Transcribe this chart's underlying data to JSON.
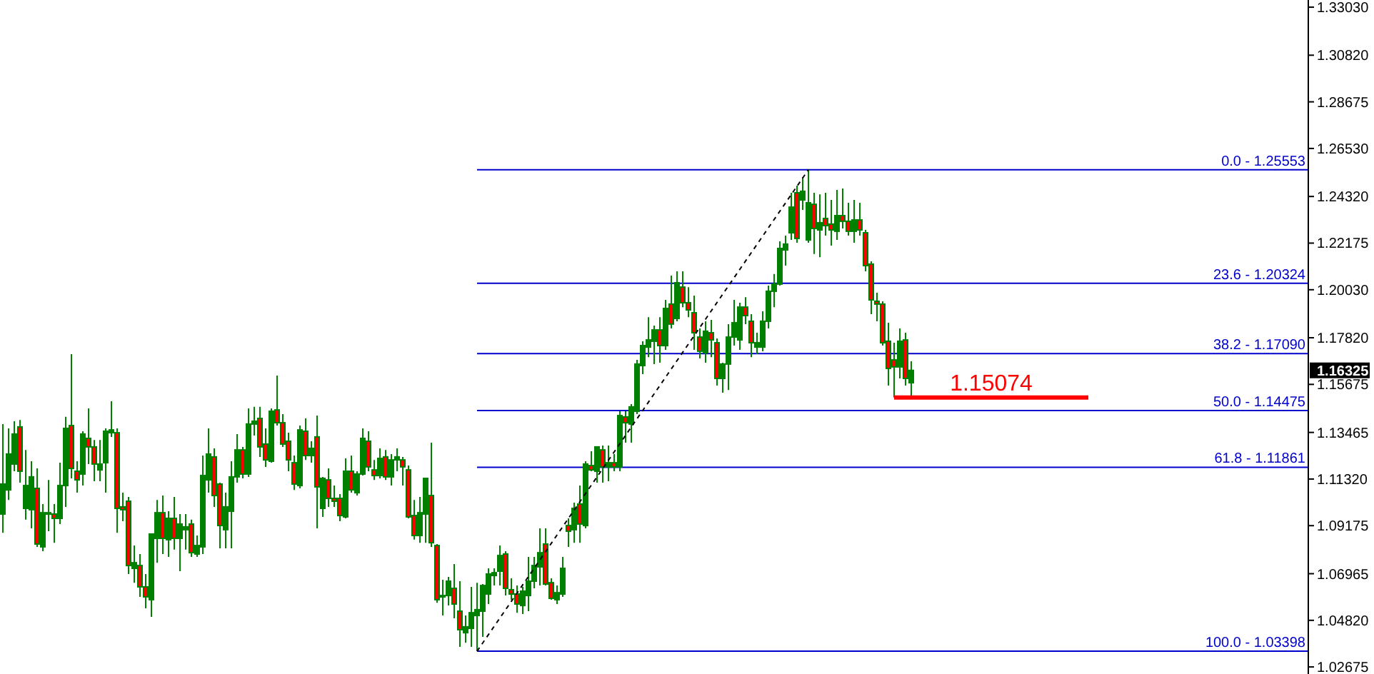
{
  "chart_data": {
    "type": "candlestick",
    "categories": [
      null,
      null,
      null,
      null,
      null,
      null,
      null,
      null,
      null,
      null,
      null,
      null,
      null,
      null,
      null,
      null,
      null,
      null,
      null,
      null,
      null,
      null,
      null,
      null,
      null,
      null,
      null,
      null,
      null,
      null,
      null,
      null,
      null,
      null,
      null,
      null,
      null,
      null,
      null,
      null,
      null,
      null,
      null,
      null,
      null,
      null,
      null,
      null,
      null,
      null,
      null,
      null,
      null,
      null,
      null,
      null,
      null,
      null,
      null,
      null,
      null,
      null,
      null,
      null,
      null,
      null,
      null,
      null,
      null,
      null,
      null,
      null,
      null,
      null,
      null,
      null,
      null,
      null,
      null,
      null,
      null,
      null,
      null,
      null,
      null,
      null,
      null,
      null,
      null,
      null,
      null,
      null,
      null,
      null,
      null,
      null,
      null,
      null,
      null,
      null,
      null,
      null,
      null,
      null,
      null,
      null,
      null,
      null,
      null,
      null,
      null,
      null,
      null,
      null,
      null,
      null,
      null,
      null,
      null,
      null,
      null,
      null,
      null,
      null,
      null,
      null,
      null,
      null,
      null,
      null,
      null,
      null,
      null,
      null,
      null,
      null,
      null,
      null,
      null,
      null,
      null,
      null,
      null,
      null,
      null,
      null,
      null,
      null,
      null,
      null,
      null,
      null,
      null,
      null,
      null,
      null,
      null,
      null,
      null,
      null,
      null,
      null,
      null,
      null,
      null,
      null,
      null,
      null,
      null,
      null,
      null,
      null,
      null,
      null,
      null,
      null,
      null,
      null,
      null,
      null,
      null,
      null,
      null,
      null,
      null,
      null,
      null,
      null,
      null,
      null,
      null,
      null,
      null,
      null,
      null,
      null,
      null,
      null,
      null,
      null,
      null,
      null,
      null,
      null,
      null,
      null,
      null,
      null,
      null,
      null,
      null,
      null,
      null,
      null,
      null,
      null,
      null,
      null,
      null,
      null,
      null,
      null,
      null,
      null,
      null,
      null,
      null,
      null,
      null
    ],
    "series": [
      {
        "color": "#008000",
        "ohlc": [
          [
            1.0971,
            1.1385,
            1.0885,
            1.1109
          ],
          [
            1.1082,
            1.1365,
            1.1036,
            1.1247
          ],
          [
            1.1201,
            1.1398,
            1.1168,
            1.1339
          ],
          [
            1.1372,
            1.1404,
            1.1115,
            1.1168
          ],
          [
            1.0997,
            1.1266,
            1.0945,
            1.1102
          ],
          [
            1.0991,
            1.1214,
            1.0905,
            1.1142
          ],
          [
            1.1089,
            1.1181,
            1.082,
            1.0833
          ],
          [
            1.082,
            1.1017,
            1.08,
            1.0977
          ],
          [
            1.0971,
            1.1128,
            1.0892,
            1.0977
          ],
          [
            1.0971,
            1.1017,
            1.0839,
            1.0951
          ],
          [
            1.0951,
            1.1207,
            1.0925,
            1.1102
          ],
          [
            1.1102,
            1.1418,
            1.1004,
            1.1365
          ],
          [
            1.1378,
            1.1707,
            1.1135,
            1.1181
          ],
          [
            1.1168,
            1.1214,
            1.1069,
            1.1128
          ],
          [
            1.1155,
            1.1352,
            1.1102,
            1.1339
          ],
          [
            1.1319,
            1.1457,
            1.1201,
            1.128
          ],
          [
            1.128,
            1.1312,
            1.1122,
            1.1201
          ],
          [
            1.1174,
            1.1312,
            1.1122,
            1.1201
          ],
          [
            1.1207,
            1.1365,
            1.1069,
            1.1352
          ],
          [
            1.1345,
            1.149,
            1.1326,
            1.1358
          ],
          [
            1.1345,
            1.1365,
            1.0885,
            1.0997
          ],
          [
            1.1004,
            1.1069,
            1.0938,
            1.0991
          ],
          [
            1.103,
            1.105,
            1.0695,
            1.0734
          ],
          [
            1.0721,
            1.0826,
            1.0655,
            1.0747
          ],
          [
            1.0734,
            1.0787,
            1.059,
            1.0636
          ],
          [
            1.0636,
            1.0695,
            1.0537,
            1.059
          ],
          [
            1.0577,
            1.0879,
            1.0498,
            1.0879
          ],
          [
            1.0859,
            1.1036,
            1.0747,
            1.0977
          ],
          [
            1.0977,
            1.1056,
            1.0787,
            1.0859
          ],
          [
            1.0853,
            1.0984,
            1.0774,
            1.0951
          ],
          [
            1.0951,
            1.105,
            1.0807,
            1.0859
          ],
          [
            1.0859,
            1.0971,
            1.0708,
            1.0925
          ],
          [
            1.0899,
            1.0971,
            1.0807,
            1.0912
          ],
          [
            1.0925,
            1.0945,
            1.0774,
            1.0793
          ],
          [
            1.0787,
            1.0872,
            1.0774,
            1.0826
          ],
          [
            1.082,
            1.124,
            1.0787,
            1.1148
          ],
          [
            1.1128,
            1.1365,
            1.1069,
            1.1247
          ],
          [
            1.1234,
            1.1273,
            1.1004,
            1.1056
          ],
          [
            1.1109,
            1.1115,
            1.0813,
            1.0918
          ],
          [
            1.0899,
            1.1069,
            1.0813,
            1.1004
          ],
          [
            1.0984,
            1.1214,
            1.0813,
            1.1142
          ],
          [
            1.1142,
            1.1339,
            1.1115,
            1.1266
          ],
          [
            1.1266,
            1.128,
            1.1135,
            1.1155
          ],
          [
            1.1155,
            1.1457,
            1.1142,
            1.1385
          ],
          [
            1.1385,
            1.1464,
            1.1332,
            1.1398
          ],
          [
            1.1411,
            1.1464,
            1.1234,
            1.128
          ],
          [
            1.1293,
            1.1365,
            1.1188,
            1.122
          ],
          [
            1.1214,
            1.1457,
            1.1207,
            1.1444
          ],
          [
            1.145,
            1.1608,
            1.1378,
            1.1391
          ],
          [
            1.1391,
            1.1431,
            1.128,
            1.1293
          ],
          [
            1.1306,
            1.1345,
            1.1168,
            1.122
          ],
          [
            1.1207,
            1.124,
            1.1082,
            1.1109
          ],
          [
            1.1102,
            1.1378,
            1.1089,
            1.1358
          ],
          [
            1.1352,
            1.1411,
            1.122,
            1.124
          ],
          [
            1.124,
            1.1306,
            1.1207,
            1.1273
          ],
          [
            1.1326,
            1.1424,
            1.0905,
            1.1096
          ],
          [
            1.0997,
            1.1142,
            1.0958,
            1.1135
          ],
          [
            1.1128,
            1.1181,
            1.1004,
            1.1043
          ],
          [
            1.1043,
            1.1102,
            1.1004,
            1.103
          ],
          [
            1.1043,
            1.1063,
            1.0938,
            1.0964
          ],
          [
            1.0958,
            1.1227,
            1.0951,
            1.1168
          ],
          [
            1.1168,
            1.124,
            1.1069,
            1.1082
          ],
          [
            1.1069,
            1.1168,
            1.1056,
            1.1155
          ],
          [
            1.1155,
            1.1365,
            1.1148,
            1.1319
          ],
          [
            1.1306,
            1.1352,
            1.1168,
            1.1188
          ],
          [
            1.1174,
            1.122,
            1.1128,
            1.1148
          ],
          [
            1.1148,
            1.1273,
            1.1135,
            1.1227
          ],
          [
            1.1234,
            1.1266,
            1.1128,
            1.1142
          ],
          [
            1.1142,
            1.1247,
            1.1102,
            1.122
          ],
          [
            1.122,
            1.1273,
            1.1168,
            1.1234
          ],
          [
            1.122,
            1.1234,
            1.1102,
            1.1188
          ],
          [
            1.1174,
            1.1194,
            1.0951,
            1.0958
          ],
          [
            1.0964,
            1.1036,
            1.0853,
            1.0872
          ],
          [
            1.0872,
            1.105,
            1.0839,
            1.0977
          ],
          [
            1.0971,
            1.1135,
            1.0839,
            1.1135
          ],
          [
            1.1056,
            1.1299,
            1.082,
            1.0839
          ],
          [
            1.0826,
            1.0833,
            1.0563,
            1.0577
          ],
          [
            1.059,
            1.0669,
            1.0504,
            1.0596
          ],
          [
            1.0596,
            1.0682,
            1.055,
            1.0662
          ],
          [
            1.0629,
            1.0741,
            1.0491,
            1.0557
          ],
          [
            1.0524,
            1.0662,
            1.036,
            1.0439
          ],
          [
            1.0425,
            1.0504,
            1.0379,
            1.0452
          ],
          [
            1.0445,
            1.0636,
            1.036,
            1.0517
          ],
          [
            1.0504,
            1.0655,
            1.03398,
            1.0531
          ],
          [
            1.0524,
            1.0649,
            1.0406,
            1.0642
          ],
          [
            1.0603,
            1.0721,
            1.0557,
            1.0695
          ],
          [
            1.0688,
            1.0721,
            1.0642,
            1.0701
          ],
          [
            1.0708,
            1.0826,
            1.0642,
            1.078
          ],
          [
            1.0787,
            1.08,
            1.0596,
            1.0629
          ],
          [
            1.0623,
            1.0675,
            1.0577,
            1.0603
          ],
          [
            1.0603,
            1.0642,
            1.0517,
            1.0557
          ],
          [
            1.055,
            1.0636,
            1.0511,
            1.0616
          ],
          [
            1.0596,
            1.0774,
            1.0524,
            1.0662
          ],
          [
            1.0662,
            1.0774,
            1.0629,
            1.0734
          ],
          [
            1.0728,
            1.0905,
            1.0642,
            1.0793
          ],
          [
            1.0833,
            1.0905,
            1.0642,
            1.0649
          ],
          [
            1.0655,
            1.0675,
            1.0577,
            1.0583
          ],
          [
            1.0577,
            1.0642,
            1.0557,
            1.0609
          ],
          [
            1.0603,
            1.0774,
            1.059,
            1.0721
          ],
          [
            1.0918,
            1.0951,
            1.082,
            1.0892
          ],
          [
            1.0899,
            1.1023,
            1.0839,
            1.0997
          ],
          [
            1.1017,
            1.1102,
            1.0839,
            1.0925
          ],
          [
            1.0918,
            1.1214,
            1.0905,
            1.1201
          ],
          [
            1.1194,
            1.126,
            1.1168,
            1.1174
          ],
          [
            1.1168,
            1.128,
            1.1115,
            1.128
          ],
          [
            1.1266,
            1.1286,
            1.1115,
            1.1188
          ],
          [
            1.1188,
            1.1286,
            1.1122,
            1.1207
          ],
          [
            1.1207,
            1.1247,
            1.1168,
            1.1188
          ],
          [
            1.1188,
            1.1444,
            1.1168,
            1.1424
          ],
          [
            1.1418,
            1.1444,
            1.1299,
            1.1391
          ],
          [
            1.1385,
            1.1477,
            1.1299,
            1.1464
          ],
          [
            1.1444,
            1.168,
            1.1431,
            1.1661
          ],
          [
            1.1654,
            1.1766,
            1.1615,
            1.1746
          ],
          [
            1.1739,
            1.1877,
            1.1693,
            1.1772
          ],
          [
            1.1766,
            1.1838,
            1.1661,
            1.1818
          ],
          [
            1.1818,
            1.1877,
            1.1667,
            1.1746
          ],
          [
            1.1746,
            1.1956,
            1.1726,
            1.1917
          ],
          [
            1.1937,
            1.2068,
            1.1825,
            1.1845
          ],
          [
            1.1871,
            1.2088,
            1.1858,
            1.2035
          ],
          [
            1.2015,
            1.2088,
            1.1923,
            1.1943
          ],
          [
            1.1943,
            1.2015,
            1.1877,
            1.191
          ],
          [
            1.1897,
            1.1976,
            1.1726,
            1.1805
          ],
          [
            1.1785,
            1.1825,
            1.1687,
            1.172
          ],
          [
            1.1713,
            1.1858,
            1.1667,
            1.1812
          ],
          [
            1.1805,
            1.1864,
            1.1693,
            1.1772
          ],
          [
            1.1759,
            1.1779,
            1.1562,
            1.1595
          ],
          [
            1.1595,
            1.1667,
            1.1529,
            1.1661
          ],
          [
            1.1661,
            1.1845,
            1.1542,
            1.1785
          ],
          [
            1.1785,
            1.1956,
            1.1746,
            1.1851
          ],
          [
            1.1772,
            1.1943,
            1.1726,
            1.1923
          ],
          [
            1.1923,
            1.1969,
            1.1845,
            1.1884
          ],
          [
            1.1858,
            1.1891,
            1.1693,
            1.1759
          ],
          [
            1.1739,
            1.1805,
            1.1707,
            1.1759
          ],
          [
            1.1739,
            1.1904,
            1.172,
            1.1858
          ],
          [
            1.1858,
            1.2022,
            1.1825,
            1.1996
          ],
          [
            1.1996,
            1.2075,
            1.1923,
            1.2029
          ],
          [
            1.2029,
            1.2226,
            1.2022,
            1.2193
          ],
          [
            1.2186,
            1.2252,
            1.2114,
            1.2213
          ],
          [
            1.2265,
            1.2449,
            1.2232,
            1.2383
          ],
          [
            1.2449,
            1.2482,
            1.2219,
            1.2239
          ],
          [
            1.2416,
            1.2521,
            1.237,
            1.2456
          ],
          [
            1.2232,
            1.25553,
            1.2219,
            1.2403
          ],
          [
            1.2396,
            1.2449,
            1.2167,
            1.2285
          ],
          [
            1.2278,
            1.2442,
            1.2153,
            1.2311
          ],
          [
            1.2331,
            1.2449,
            1.2252,
            1.2298
          ],
          [
            1.2305,
            1.2416,
            1.2206,
            1.2278
          ],
          [
            1.2272,
            1.2462,
            1.2232,
            1.2344
          ],
          [
            1.2344,
            1.2469,
            1.2285,
            1.2318
          ],
          [
            1.2318,
            1.2403,
            1.2252,
            1.2272
          ],
          [
            1.2272,
            1.2416,
            1.2219,
            1.2324
          ],
          [
            1.2324,
            1.2403,
            1.2252,
            1.2278
          ],
          [
            1.2265,
            1.2278,
            1.2088,
            1.2114
          ],
          [
            1.2121,
            1.2134,
            1.1891,
            1.1956
          ],
          [
            1.195,
            1.1989,
            1.1858,
            1.1937
          ],
          [
            1.1937,
            1.195,
            1.1746,
            1.1759
          ],
          [
            1.1766,
            1.1851,
            1.1562,
            1.1641
          ],
          [
            1.168,
            1.1759,
            1.15074,
            1.1648
          ],
          [
            1.1648,
            1.1825,
            1.1595,
            1.1766
          ],
          [
            1.1772,
            1.1805,
            1.1562,
            1.1595
          ],
          [
            1.1575,
            1.1674,
            1.15074,
            1.1632
          ],
          null,
          null,
          null,
          null,
          null,
          null,
          null,
          null,
          null,
          null,
          null,
          null,
          null,
          null,
          null,
          null,
          null,
          null,
          null,
          null,
          null,
          null,
          null,
          null,
          null,
          null,
          null,
          null,
          null,
          null,
          null,
          null,
          null,
          null,
          null,
          null,
          null,
          null,
          null,
          null,
          null,
          null,
          null,
          null,
          null,
          null,
          null,
          null,
          null,
          null,
          null,
          null,
          null,
          null,
          null,
          null,
          null,
          null,
          null,
          null,
          null,
          null,
          null,
          null,
          null,
          null,
          null,
          null,
          null
        ]
      },
      {
        "type": "line",
        "color": "#000000",
        "line_style": "dashed",
        "values": [
          null,
          null,
          null,
          null,
          null,
          null,
          null,
          null,
          null,
          null,
          null,
          null,
          null,
          null,
          null,
          null,
          null,
          null,
          null,
          null,
          null,
          null,
          null,
          null,
          null,
          null,
          null,
          null,
          null,
          null,
          null,
          null,
          null,
          null,
          null,
          null,
          null,
          null,
          null,
          null,
          null,
          null,
          null,
          null,
          null,
          null,
          null,
          null,
          null,
          null,
          null,
          null,
          null,
          null,
          null,
          null,
          null,
          null,
          null,
          null,
          null,
          null,
          null,
          null,
          null,
          null,
          null,
          null,
          null,
          null,
          null,
          null,
          null,
          null,
          null,
          null,
          null,
          null,
          null,
          null,
          null,
          null,
          null,
          1.03398,
          null,
          null,
          null,
          null,
          null,
          null,
          null,
          null,
          null,
          null,
          null,
          null,
          null,
          null,
          null,
          null,
          null,
          null,
          null,
          null,
          null,
          null,
          null,
          null,
          null,
          null,
          null,
          null,
          null,
          null,
          null,
          null,
          null,
          null,
          null,
          null,
          null,
          null,
          null,
          null,
          null,
          null,
          null,
          null,
          null,
          null,
          null,
          null,
          null,
          null,
          null,
          null,
          null,
          null,
          null,
          null,
          null,
          1.25553,
          null,
          null,
          null,
          null,
          null,
          null,
          null,
          null,
          null,
          null,
          null,
          null,
          null,
          null,
          null,
          null,
          null,
          null,
          null,
          null,
          null,
          null,
          null,
          null,
          null,
          null,
          null,
          null,
          null,
          null,
          null,
          null,
          null,
          null,
          null,
          null,
          null,
          null,
          null,
          null,
          null,
          null,
          null,
          null,
          null,
          null,
          null,
          null,
          null,
          null,
          null,
          null,
          null,
          null,
          null,
          null,
          null,
          null,
          null,
          null,
          null,
          null,
          null,
          null,
          null,
          null,
          null,
          null,
          null,
          null,
          null,
          null,
          null,
          null,
          null,
          null,
          null,
          null,
          null,
          null,
          null,
          null,
          null,
          null,
          null,
          null,
          null
        ]
      },
      {
        "type": "line",
        "color": "#ff0000",
        "line_style": "solid",
        "values": [
          null,
          null,
          null,
          null,
          null,
          null,
          null,
          null,
          null,
          null,
          null,
          null,
          null,
          null,
          null,
          null,
          null,
          null,
          null,
          null,
          null,
          null,
          null,
          null,
          null,
          null,
          null,
          null,
          null,
          null,
          null,
          null,
          null,
          null,
          null,
          null,
          null,
          null,
          null,
          null,
          null,
          null,
          null,
          null,
          null,
          null,
          null,
          null,
          null,
          null,
          null,
          null,
          null,
          null,
          null,
          null,
          null,
          null,
          null,
          null,
          null,
          null,
          null,
          null,
          null,
          null,
          null,
          null,
          null,
          null,
          null,
          null,
          null,
          null,
          null,
          null,
          null,
          null,
          null,
          null,
          null,
          null,
          null,
          null,
          null,
          null,
          null,
          null,
          null,
          null,
          null,
          null,
          null,
          null,
          null,
          null,
          null,
          null,
          null,
          null,
          null,
          null,
          null,
          null,
          null,
          null,
          null,
          null,
          null,
          null,
          null,
          null,
          null,
          null,
          null,
          null,
          null,
          null,
          null,
          null,
          null,
          null,
          null,
          null,
          null,
          null,
          null,
          null,
          null,
          null,
          null,
          null,
          null,
          null,
          null,
          null,
          null,
          null,
          null,
          null,
          null,
          null,
          null,
          null,
          null,
          null,
          null,
          null,
          null,
          null,
          null,
          null,
          null,
          null,
          null,
          null,
          1.15074,
          1.15074,
          1.15074,
          1.15074,
          1.15074,
          1.15074,
          1.15074,
          1.15074,
          1.15074,
          1.15074,
          1.15074,
          1.15074,
          1.15074,
          1.15074,
          1.15074,
          1.15074,
          1.15074,
          1.15074,
          1.15074,
          1.15074,
          1.15074,
          1.15074,
          1.15074,
          1.15074,
          1.15074,
          1.15074,
          1.15074,
          1.15074,
          1.15074,
          1.15074,
          1.15074,
          1.15074,
          1.15074,
          1.15074,
          1.15074,
          null,
          null,
          null,
          null,
          null,
          null,
          null,
          null,
          null,
          null,
          null,
          null,
          null,
          null,
          null,
          null,
          null,
          null,
          null,
          null,
          null,
          null,
          null,
          null,
          null,
          null,
          null,
          null,
          null,
          null,
          null,
          null,
          null,
          null,
          null,
          null,
          null,
          null
        ]
      }
    ],
    "ylim": [
      1.0235,
      1.3336
    ],
    "yticks": [
      {
        "value": 1.3303,
        "label": "1.33030"
      },
      {
        "value": 1.3082,
        "label": "1.30820"
      },
      {
        "value": 1.28675,
        "label": "1.28675"
      },
      {
        "value": 1.2653,
        "label": "1.26530"
      },
      {
        "value": 1.2432,
        "label": "1.24320"
      },
      {
        "value": 1.22175,
        "label": "1.22175"
      },
      {
        "value": 1.2003,
        "label": "1.20030"
      },
      {
        "value": 1.1782,
        "label": "1.17820"
      },
      {
        "value": 1.15675,
        "label": "1.15675"
      },
      {
        "value": 1.13465,
        "label": "1.13465"
      },
      {
        "value": 1.1132,
        "label": "1.11320"
      },
      {
        "value": 1.09175,
        "label": "1.09175"
      },
      {
        "value": 1.06965,
        "label": "1.06965"
      },
      {
        "value": 1.0482,
        "label": "1.04820"
      },
      {
        "value": 1.02675,
        "label": "1.02675"
      }
    ],
    "ref_lines": [
      {
        "axis": "y",
        "value": 1.25553,
        "color": "#0000cc"
      },
      {
        "axis": "y",
        "value": 1.20324,
        "color": "#0000cc"
      },
      {
        "axis": "y",
        "value": 1.1709,
        "color": "#0000cc"
      },
      {
        "axis": "y",
        "value": 1.14475,
        "color": "#0000cc"
      },
      {
        "axis": "y",
        "value": 1.11861,
        "color": "#0000cc"
      },
      {
        "axis": "y",
        "value": 1.03398,
        "color": "#0000cc"
      }
    ],
    "annotations": [
      "1.16325",
      {
        "text": "0.0 - 1.25553",
        "y": 1.25553
      },
      {
        "text": "23.6 - 1.20324",
        "y": 1.20324
      },
      {
        "text": "38.2 - 1.17090",
        "y": 1.1709
      },
      {
        "text": "50.0 - 1.14475",
        "y": 1.14475
      },
      {
        "text": "61.8 - 1.11861",
        "y": 1.11861
      },
      {
        "text": "100.0 - 1.03398",
        "y": 1.03398
      },
      "1.15074"
    ],
    "grid": false
  }
}
